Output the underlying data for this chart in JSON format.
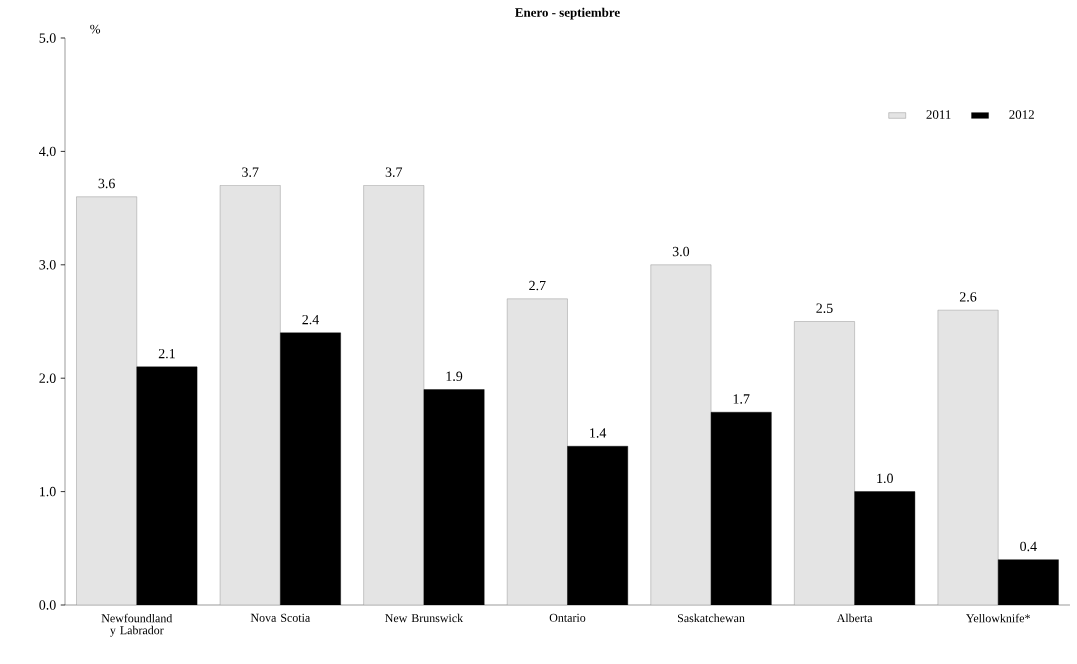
{
  "chart_data": {
    "type": "bar",
    "title": "Enero - septiembre",
    "ylabel": "%",
    "categories": [
      "Newfoundland y Labrador",
      "Nova Scotia",
      "New Brunswick",
      "Ontario",
      "Saskatchewan",
      "Alberta",
      "Yellowknife*"
    ],
    "series": [
      {
        "name": "2011",
        "color": "#e4e4e4",
        "values": [
          3.6,
          3.7,
          3.7,
          2.7,
          3.0,
          2.5,
          2.6
        ],
        "value_labels": [
          "3.6",
          "3.7",
          "3.7",
          "2.7",
          "3.0",
          "2.5",
          "2.6"
        ]
      },
      {
        "name": "2012",
        "color": "#000000",
        "values": [
          2.1,
          2.4,
          1.9,
          1.4,
          1.7,
          1.0,
          0.4
        ],
        "value_labels": [
          "2.1",
          "2.4",
          "1.9",
          "1.4",
          "1.7",
          "1.0",
          "0.4"
        ]
      }
    ],
    "ylim": [
      0,
      5
    ],
    "yticks": [
      {
        "value": 0,
        "label": "0.0"
      },
      {
        "value": 1,
        "label": "1.0"
      },
      {
        "value": 2,
        "label": "2.0"
      },
      {
        "value": 3,
        "label": "3.0"
      },
      {
        "value": 4,
        "label": "4.0"
      },
      {
        "value": 5,
        "label": "5.0"
      }
    ],
    "legend": "top right",
    "grid": false
  }
}
